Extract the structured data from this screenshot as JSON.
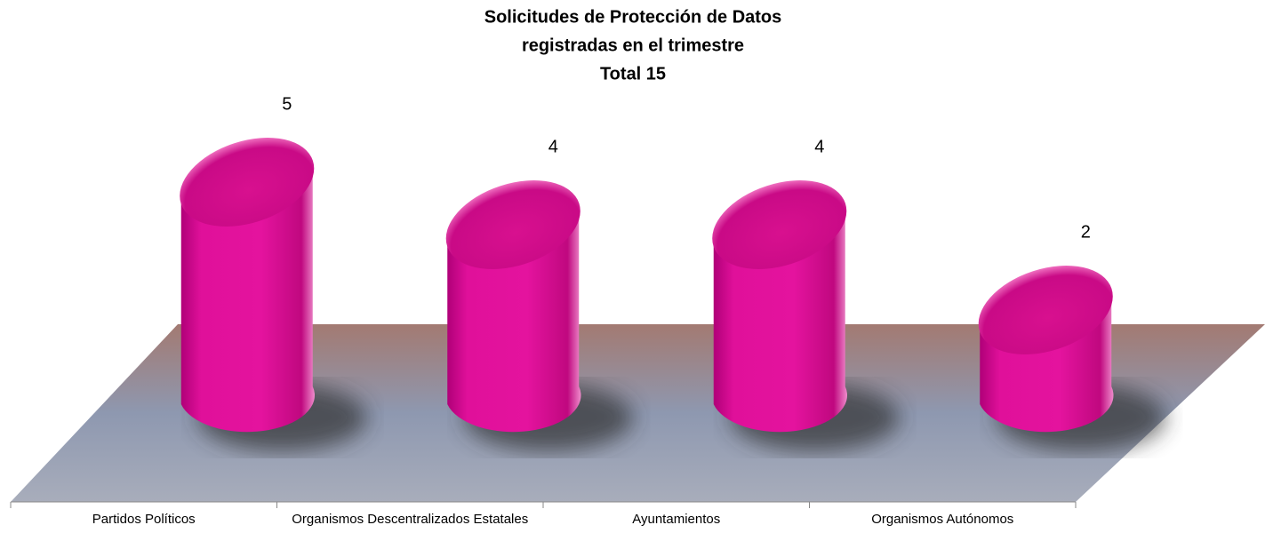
{
  "chart_data": {
    "type": "bar3d",
    "title": [
      "Solicitudes de Protección de Datos",
      "registradas  en el trimestre",
      "Total  15"
    ],
    "categories": [
      "Partidos Políticos",
      "Organismos Descentralizados Estatales",
      "Ayuntamientos",
      "Organismos Autónomos"
    ],
    "values": [
      5,
      4,
      4,
      2
    ],
    "color": "#e0109a"
  }
}
